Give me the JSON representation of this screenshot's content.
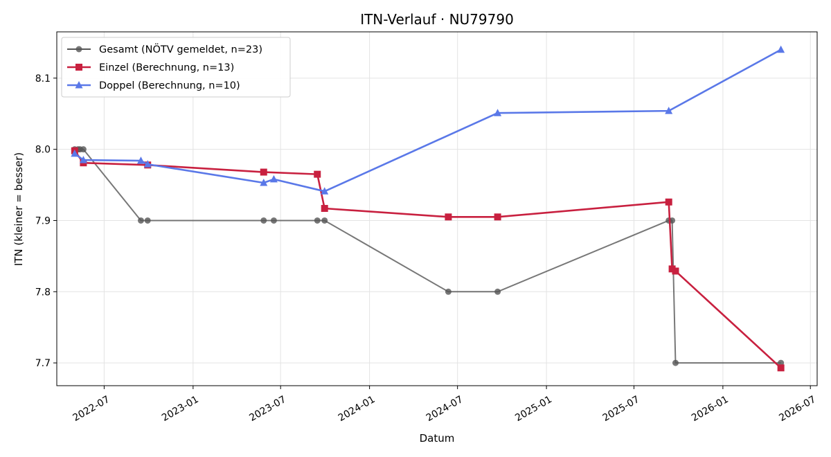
{
  "chart_data": {
    "type": "line",
    "title": "ITN-Verlauf · NU79790",
    "xlabel": "Datum",
    "ylabel": "ITN  (kleiner = besser)",
    "x_type": "date",
    "xlim": [
      "2022-03-25",
      "2026-07-15"
    ],
    "ylim": [
      7.668,
      8.165
    ],
    "x_ticks": [
      "2022-07-01",
      "2023-01-01",
      "2023-07-01",
      "2024-01-01",
      "2024-07-01",
      "2025-01-01",
      "2025-07-01",
      "2026-01-01",
      "2026-07-01"
    ],
    "x_tick_labels": [
      "2022-07",
      "2023-01",
      "2023-07",
      "2024-01",
      "2024-07",
      "2025-01",
      "2025-07",
      "2026-01",
      "2026-07"
    ],
    "y_ticks": [
      7.7,
      7.8,
      7.9,
      8.0,
      8.1
    ],
    "y_tick_labels": [
      "7.7",
      "7.8",
      "7.9",
      "8.0",
      "8.1"
    ],
    "grid": true,
    "legend_position": "top-left",
    "series": [
      {
        "name": "Gesamt (NÖTV gemeldet, n=23)",
        "color": "#555555",
        "marker": "circle",
        "x": [
          "2022-05-01",
          "2022-05-08",
          "2022-05-12",
          "2022-05-19",
          "2022-09-15",
          "2022-09-29",
          "2023-05-27",
          "2023-06-17",
          "2023-09-15",
          "2023-09-30",
          "2024-06-12",
          "2024-09-22",
          "2025-09-11",
          "2025-09-18",
          "2025-09-25",
          "2026-05-01"
        ],
        "y": [
          8.0,
          8.0,
          8.0,
          8.0,
          7.9,
          7.9,
          7.9,
          7.9,
          7.9,
          7.9,
          7.8,
          7.8,
          7.9,
          7.9,
          7.7,
          7.7
        ]
      },
      {
        "name": "Einzel (Berechnung, n=13)",
        "color": "#c8203f",
        "marker": "square",
        "x": [
          "2022-05-01",
          "2022-05-19",
          "2022-09-29",
          "2023-05-27",
          "2023-09-15",
          "2023-09-30",
          "2024-06-12",
          "2024-09-22",
          "2025-09-11",
          "2025-09-18",
          "2025-09-25",
          "2026-05-01"
        ],
        "y": [
          7.998,
          7.981,
          7.978,
          7.968,
          7.965,
          7.917,
          7.905,
          7.905,
          7.926,
          7.832,
          7.829,
          7.693
        ]
      },
      {
        "name": "Doppel (Berechnung, n=10)",
        "color": "#5a78e8",
        "marker": "triangle",
        "x": [
          "2022-05-01",
          "2022-05-19",
          "2022-09-15",
          "2022-09-29",
          "2023-05-27",
          "2023-06-17",
          "2023-09-30",
          "2024-09-22",
          "2025-09-11",
          "2026-05-01"
        ],
        "y": [
          7.994,
          7.985,
          7.984,
          7.979,
          7.953,
          7.958,
          7.941,
          8.051,
          8.054,
          8.14
        ]
      }
    ]
  }
}
